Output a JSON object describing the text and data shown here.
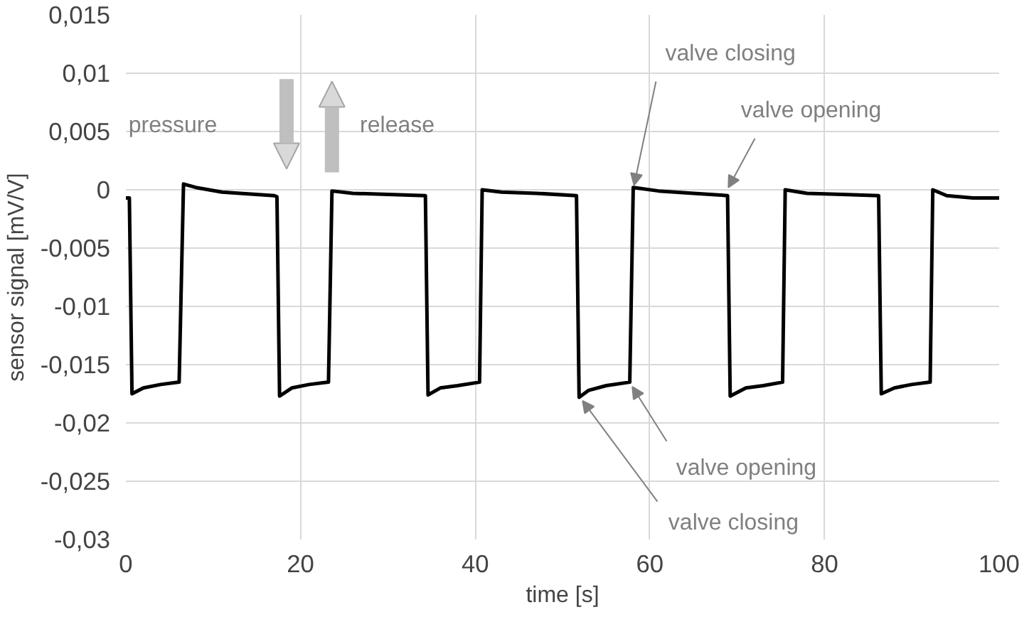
{
  "chart_data": {
    "type": "line",
    "xlabel": "time [s]",
    "ylabel": "sensor signal [mV/V]",
    "xlim": [
      0,
      100
    ],
    "xticks": [
      0,
      20,
      40,
      60,
      80,
      100
    ],
    "ylim": [
      -0.03,
      0.015
    ],
    "yticks": [
      {
        "value": -0.03,
        "label": "-0,03"
      },
      {
        "value": -0.025,
        "label": "-0,025"
      },
      {
        "value": -0.02,
        "label": "-0,02"
      },
      {
        "value": -0.015,
        "label": "-0,015"
      },
      {
        "value": -0.01,
        "label": "-0,01"
      },
      {
        "value": -0.005,
        "label": "-0,005"
      },
      {
        "value": 0,
        "label": "0"
      },
      {
        "value": 0.005,
        "label": "0,005"
      },
      {
        "value": 0.01,
        "label": "0,01"
      },
      {
        "value": 0.015,
        "label": "0,015"
      }
    ],
    "grid": true,
    "marker": "none",
    "line_style": "solid",
    "x": [
      0,
      0.4,
      0.7,
      2,
      4,
      6.1,
      6.6,
      8,
      11,
      17,
      17.3,
      17.6,
      19,
      21,
      23.2,
      23.6,
      26,
      30,
      34.3,
      34.6,
      36,
      38,
      40.5,
      40.8,
      43,
      47,
      51.6,
      51.9,
      53,
      55,
      57.7,
      58.1,
      61,
      65,
      68.9,
      69.2,
      71,
      73,
      75.2,
      75.5,
      78,
      82,
      86.2,
      86.5,
      88,
      90,
      92.1,
      92.4,
      94,
      97,
      100
    ],
    "series": [
      {
        "color": "#000000",
        "values": [
          -0.0007,
          -0.0007,
          -0.0175,
          -0.017,
          -0.0167,
          -0.0165,
          0.0005,
          0.0002,
          -0.0002,
          -0.0005,
          -0.0006,
          -0.0177,
          -0.017,
          -0.0167,
          -0.0165,
          -0.0001,
          -0.0003,
          -0.0004,
          -0.0005,
          -0.0176,
          -0.017,
          -0.0168,
          -0.0165,
          0,
          -0.0002,
          -0.0003,
          -0.0005,
          -0.0178,
          -0.0172,
          -0.0168,
          -0.0165,
          0.0002,
          -0.0001,
          -0.0003,
          -0.0005,
          -0.0177,
          -0.017,
          -0.0168,
          -0.0165,
          0,
          -0.0003,
          -0.0004,
          -0.0005,
          -0.0175,
          -0.017,
          -0.0167,
          -0.0165,
          0,
          -0.0005,
          -0.0007,
          -0.0007
        ]
      }
    ],
    "annotations": [
      {
        "text": "valve closing",
        "x": 58.2,
        "y": 0.0004
      },
      {
        "text": "valve opening",
        "x": 69,
        "y": 0.0002
      },
      {
        "text": "valve opening",
        "x": 58,
        "y": -0.0169
      },
      {
        "text": "valve closing",
        "x": 52.3,
        "y": -0.0181
      },
      "pressure",
      "release"
    ]
  }
}
